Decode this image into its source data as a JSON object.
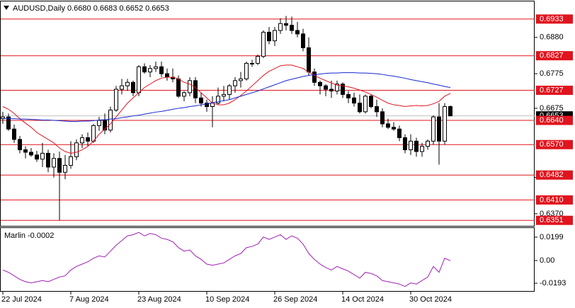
{
  "chart_data": [
    {
      "type": "candlestick",
      "title": "AUDUSD,Daily  0.6680 0.6683 0.6652 0.6653",
      "categories": [
        "22 Jul 2024",
        null,
        null,
        null,
        null,
        null,
        null,
        null,
        null,
        null,
        null,
        null,
        "7 Aug 2024",
        null,
        null,
        null,
        null,
        null,
        null,
        null,
        null,
        null,
        null,
        null,
        "23 Aug 2024",
        null,
        null,
        null,
        null,
        null,
        null,
        null,
        null,
        null,
        null,
        null,
        "10 Sep 2024",
        null,
        null,
        null,
        null,
        null,
        null,
        null,
        null,
        null,
        null,
        null,
        "26 Sep 2024",
        null,
        null,
        null,
        null,
        null,
        null,
        null,
        null,
        null,
        null,
        null,
        "14 Oct 2024",
        null,
        null,
        null,
        null,
        null,
        null,
        null,
        null,
        null,
        null,
        null,
        "30 Oct 2024",
        null,
        null,
        null,
        null,
        null,
        null,
        null
      ],
      "open": [
        0.6645,
        0.665,
        0.6615,
        0.6585,
        0.6555,
        0.6548,
        0.654,
        0.6528,
        0.6545,
        0.6505,
        0.653,
        0.649,
        0.651,
        0.6535,
        0.6575,
        0.659,
        0.658,
        0.6625,
        0.664,
        0.6612,
        0.667,
        0.673,
        0.674,
        0.675,
        0.672,
        0.6795,
        0.678,
        0.679,
        0.6795,
        0.6775,
        0.6765,
        0.676,
        0.671,
        0.672,
        0.6755,
        0.6705,
        0.669,
        0.668,
        0.669,
        0.671,
        0.6715,
        0.674,
        0.6755,
        0.676,
        0.6805,
        0.6805,
        0.6825,
        0.6895,
        0.687,
        0.69,
        0.692,
        0.6915,
        0.69,
        0.689,
        0.685,
        0.678,
        0.675,
        0.674,
        0.673,
        0.6725,
        0.6745,
        0.6715,
        0.6705,
        0.669,
        0.6665,
        0.671,
        0.668,
        0.6665,
        0.663,
        0.662,
        0.6615,
        0.659,
        0.6555,
        0.658,
        0.655,
        0.6565,
        0.658,
        0.665,
        0.658,
        0.668
      ],
      "high": [
        0.6665,
        0.666,
        0.6628,
        0.6595,
        0.6565,
        0.656,
        0.6552,
        0.6575,
        0.6555,
        0.6545,
        0.655,
        0.654,
        0.658,
        0.6585,
        0.66,
        0.6605,
        0.663,
        0.665,
        0.666,
        0.668,
        0.674,
        0.676,
        0.676,
        0.6755,
        0.68,
        0.6805,
        0.68,
        0.681,
        0.681,
        0.679,
        0.679,
        0.677,
        0.6725,
        0.6765,
        0.6765,
        0.672,
        0.67,
        0.671,
        0.6735,
        0.674,
        0.6745,
        0.6765,
        0.678,
        0.681,
        0.6815,
        0.683,
        0.69,
        0.691,
        0.691,
        0.6935,
        0.6942,
        0.694,
        0.6925,
        0.6905,
        0.688,
        0.679,
        0.6755,
        0.6745,
        0.6755,
        0.6755,
        0.675,
        0.6725,
        0.672,
        0.6715,
        0.6715,
        0.6715,
        0.67,
        0.6675,
        0.6645,
        0.6635,
        0.6625,
        0.66,
        0.66,
        0.659,
        0.6575,
        0.6585,
        0.6655,
        0.669,
        0.669,
        0.6683
      ],
      "low": [
        0.663,
        0.661,
        0.6575,
        0.6545,
        0.653,
        0.6535,
        0.652,
        0.6505,
        0.649,
        0.6475,
        0.6351,
        0.647,
        0.65,
        0.6525,
        0.656,
        0.6565,
        0.6575,
        0.661,
        0.66,
        0.6605,
        0.6665,
        0.6715,
        0.6725,
        0.671,
        0.671,
        0.6775,
        0.6765,
        0.678,
        0.6765,
        0.6755,
        0.675,
        0.6705,
        0.6695,
        0.671,
        0.669,
        0.668,
        0.6665,
        0.662,
        0.6685,
        0.6695,
        0.67,
        0.672,
        0.6735,
        0.6755,
        0.6795,
        0.68,
        0.682,
        0.686,
        0.6855,
        0.689,
        0.69,
        0.689,
        0.688,
        0.684,
        0.677,
        0.674,
        0.6715,
        0.671,
        0.6705,
        0.6715,
        0.6705,
        0.669,
        0.668,
        0.666,
        0.666,
        0.6675,
        0.665,
        0.662,
        0.6615,
        0.661,
        0.658,
        0.6545,
        0.654,
        0.6535,
        0.6535,
        0.6555,
        0.657,
        0.6512,
        0.657,
        0.6652
      ],
      "close": [
        0.665,
        0.6615,
        0.6585,
        0.6555,
        0.6548,
        0.654,
        0.6528,
        0.6545,
        0.6505,
        0.653,
        0.649,
        0.651,
        0.6535,
        0.6575,
        0.659,
        0.658,
        0.6625,
        0.664,
        0.6612,
        0.667,
        0.673,
        0.674,
        0.675,
        0.672,
        0.6795,
        0.678,
        0.679,
        0.6795,
        0.6775,
        0.6765,
        0.676,
        0.671,
        0.672,
        0.6755,
        0.6705,
        0.669,
        0.668,
        0.669,
        0.671,
        0.6715,
        0.674,
        0.6755,
        0.676,
        0.6805,
        0.6805,
        0.6825,
        0.6895,
        0.687,
        0.69,
        0.692,
        0.6915,
        0.69,
        0.689,
        0.685,
        0.678,
        0.675,
        0.674,
        0.673,
        0.6725,
        0.6745,
        0.6715,
        0.6705,
        0.669,
        0.6665,
        0.671,
        0.668,
        0.6665,
        0.663,
        0.662,
        0.6615,
        0.659,
        0.6555,
        0.658,
        0.655,
        0.6565,
        0.658,
        0.665,
        0.658,
        0.668,
        0.6653
      ],
      "overlays": [
        {
          "color": "#e0141e",
          "values": [
            0.668,
            0.6672,
            0.666,
            0.6645,
            0.6632,
            0.662,
            0.6605,
            0.6595,
            0.6585,
            0.6575,
            0.656,
            0.655,
            0.6545,
            0.6548,
            0.6555,
            0.6565,
            0.658,
            0.66,
            0.6615,
            0.663,
            0.665,
            0.667,
            0.669,
            0.6705,
            0.672,
            0.6735,
            0.6745,
            0.6755,
            0.6762,
            0.6765,
            0.6765,
            0.676,
            0.675,
            0.6745,
            0.6735,
            0.672,
            0.6705,
            0.669,
            0.6685,
            0.6685,
            0.669,
            0.67,
            0.6712,
            0.6725,
            0.674,
            0.6755,
            0.677,
            0.6782,
            0.679,
            0.6798,
            0.68,
            0.68,
            0.6795,
            0.679,
            0.678,
            0.677,
            0.6762,
            0.6755,
            0.6748,
            0.6742,
            0.674,
            0.6737,
            0.6733,
            0.6728,
            0.6722,
            0.6715,
            0.6707,
            0.6698,
            0.669,
            0.6685,
            0.6683,
            0.668,
            0.6682,
            0.6683,
            0.6682,
            0.6683,
            0.6688,
            0.6695,
            0.671,
            0.6718
          ]
        },
        {
          "color": "#1428d2",
          "values": [
            0.6646,
            0.6645,
            0.6645,
            0.6644,
            0.6644,
            0.6643,
            0.6642,
            0.6641,
            0.6641,
            0.664,
            0.6639,
            0.6638,
            0.6637,
            0.6637,
            0.6638,
            0.6638,
            0.6639,
            0.6641,
            0.6642,
            0.6644,
            0.6645,
            0.6648,
            0.665,
            0.6653,
            0.6655,
            0.6658,
            0.6661,
            0.6664,
            0.6666,
            0.6669,
            0.6672,
            0.6675,
            0.6677,
            0.668,
            0.6682,
            0.6685,
            0.6688,
            0.6691,
            0.6694,
            0.6697,
            0.67,
            0.6705,
            0.671,
            0.6715,
            0.672,
            0.6725,
            0.6731,
            0.6737,
            0.6743,
            0.6749,
            0.6755,
            0.6759,
            0.6763,
            0.6767,
            0.677,
            0.6772,
            0.6774,
            0.6776,
            0.6777,
            0.6777,
            0.6778,
            0.6778,
            0.6778,
            0.6777,
            0.6777,
            0.6776,
            0.6775,
            0.6773,
            0.677,
            0.6768,
            0.6765,
            0.6762,
            0.6758,
            0.6755,
            0.6752,
            0.6749,
            0.6745,
            0.6742,
            0.6738,
            0.6735
          ]
        }
      ],
      "levels": [
        0.6933,
        0.6827,
        0.6727,
        {
          "value": 0.664,
          "label": "0.6640"
        },
        {
          "value": 0.657,
          "label": "0.6570"
        },
        0.6482,
        {
          "value": 0.641,
          "label": "0.6410"
        },
        0.6351
      ],
      "level_color": "#e0141e",
      "last_price": 0.6653,
      "ylim": [
        0.6333,
        0.6984
      ],
      "yticks": [
        {
          "value": 0.688,
          "label": "0.6880"
        },
        0.6775,
        0.6675,
        0.6475,
        {
          "value": 0.637,
          "label": "0.6370"
        }
      ]
    },
    {
      "type": "line",
      "title": "Marlin -0.0002",
      "color": "#a020b4",
      "values": [
        -0.008,
        -0.01,
        -0.013,
        -0.016,
        -0.018,
        -0.019,
        -0.018,
        -0.017,
        -0.018,
        -0.016,
        -0.014,
        -0.013,
        -0.008,
        -0.005,
        -0.003,
        -0.001,
        0.002,
        0.004,
        0.003,
        0.008,
        0.013,
        0.017,
        0.021,
        0.022,
        0.024,
        0.021,
        0.023,
        0.022,
        0.019,
        0.018,
        0.016,
        0.011,
        0.008,
        0.009,
        0.004,
        0.001,
        -0.003,
        -0.004,
        -0.003,
        -0.002,
        0.001,
        0.004,
        0.006,
        0.011,
        0.012,
        0.014,
        0.02,
        0.018,
        0.02,
        0.022,
        0.018,
        0.021,
        0.019,
        0.014,
        0.006,
        0.001,
        -0.003,
        -0.006,
        -0.008,
        -0.005,
        -0.007,
        -0.009,
        -0.012,
        -0.015,
        -0.01,
        -0.011,
        -0.013,
        -0.017,
        -0.018,
        -0.019,
        -0.02,
        -0.022,
        -0.019,
        -0.02,
        -0.017,
        -0.014,
        -0.005,
        -0.01,
        0.002,
        -0.0002
      ],
      "ylim": [
        -0.0265,
        0.0277
      ],
      "yticks": [
        0.0199,
        {
          "value": 0,
          "label": "0.00"
        },
        -0.0193
      ]
    }
  ]
}
